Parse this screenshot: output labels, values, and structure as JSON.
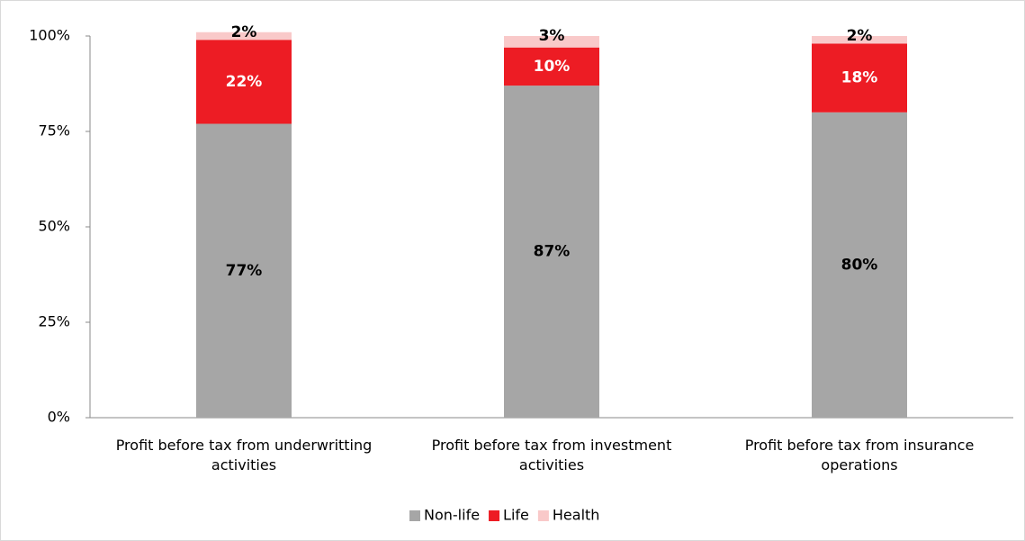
{
  "chart_data": {
    "type": "stacked_bar",
    "categories": [
      "Profit before tax from underwritting activities",
      "Profit before tax from investment activities",
      "Profit before tax from insurance operations"
    ],
    "series": [
      {
        "name": "Non-life",
        "color": "#a6a6a6",
        "values": [
          77,
          87,
          80
        ],
        "value_labels": [
          "77%",
          "87%",
          "80%"
        ]
      },
      {
        "name": "Life",
        "color": "#ed1c24",
        "values": [
          22,
          10,
          18
        ],
        "value_labels": [
          "22%",
          "10%",
          "18%"
        ]
      },
      {
        "name": "Health",
        "color": "#f9c9c9",
        "values": [
          2,
          3,
          2
        ],
        "value_labels": [
          "2%",
          "3%",
          "2%"
        ]
      }
    ],
    "ylim": [
      0,
      100
    ],
    "yticks": [
      {
        "value": 0,
        "label": "0%"
      },
      {
        "value": 25,
        "label": "25%"
      },
      {
        "value": 50,
        "label": "50%"
      },
      {
        "value": 75,
        "label": "75%"
      },
      {
        "value": 100,
        "label": "100%"
      }
    ],
    "legend": "bottom"
  }
}
